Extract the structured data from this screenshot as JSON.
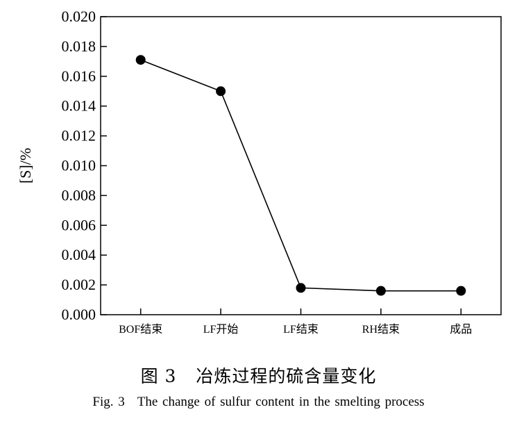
{
  "chart_data": {
    "type": "line",
    "categories": [
      "BOF结束",
      "LF开始",
      "LF结束",
      "RH结束",
      "成品"
    ],
    "series": [
      {
        "values": [
          0.0171,
          0.015,
          0.0018,
          0.0016,
          0.0016
        ]
      }
    ],
    "ylabel": "[S]/%",
    "xlabel": "",
    "ylim": [
      0,
      0.02
    ],
    "yticks": [
      "0.000",
      "0.002",
      "0.004",
      "0.006",
      "0.008",
      "0.010",
      "0.012",
      "0.014",
      "0.016",
      "0.018",
      "0.020"
    ],
    "grid": false,
    "colors": {
      "line": "#000000",
      "marker": "#000000",
      "axis": "#000000"
    }
  },
  "caption": {
    "zh_label": "图 3",
    "zh_text": "冶炼过程的硫含量变化",
    "en_label": "Fig. 3",
    "en_text": "The change of sulfur content in the smelting process"
  }
}
